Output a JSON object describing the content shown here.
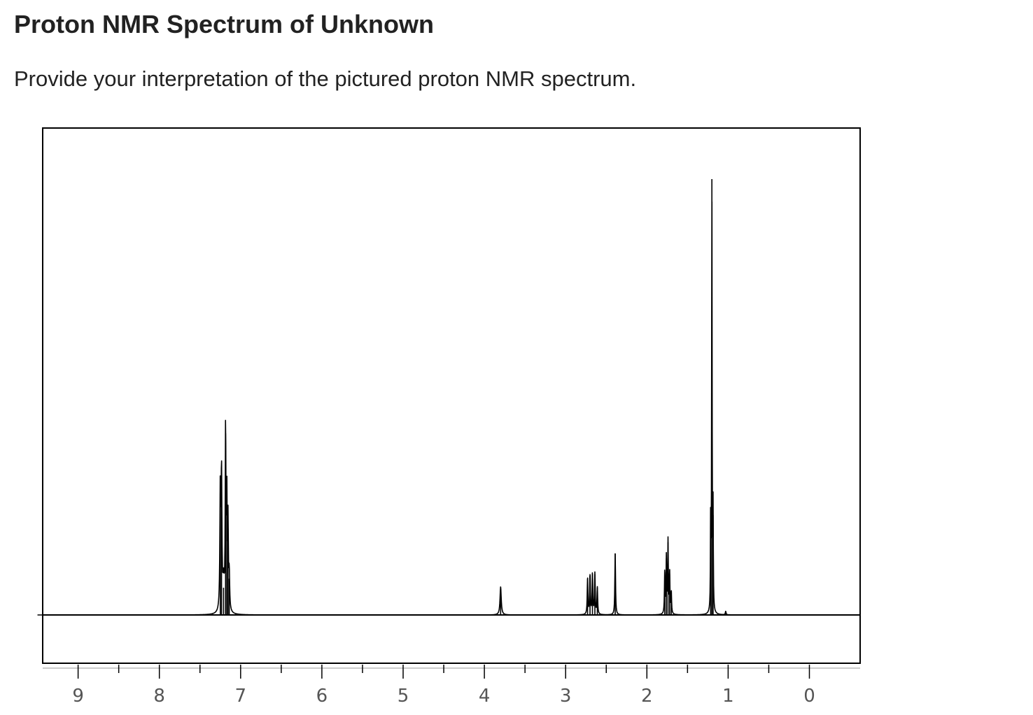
{
  "question": {
    "title": "Proton NMR Spectrum of Unknown",
    "prompt": "Provide your interpretation of the pictured proton NMR spectrum."
  },
  "colors": {
    "text": "#222222",
    "spectrum_line": "#000000",
    "tick_label": "#555555",
    "background": "#ffffff"
  },
  "chart_data": {
    "type": "line",
    "title": "",
    "xlabel": "",
    "ylabel": "",
    "x_unit": "ppm",
    "xlim": [
      9.0,
      0.0
    ],
    "x_reversed": true,
    "ylim": [
      0,
      1
    ],
    "grid": false,
    "legend": "none",
    "tick_labels": [
      "9",
      "8",
      "7",
      "6",
      "5",
      "4",
      "3",
      "2",
      "1",
      "0"
    ],
    "tick_values": [
      9,
      8,
      7,
      6,
      5,
      4,
      3,
      2,
      1,
      0
    ],
    "minor_ticks": [
      8.5,
      7.5,
      6.5,
      5.5,
      4.5,
      3.5,
      2.5,
      1.5,
      0.5
    ],
    "peaks": [
      {
        "ppm": 7.25,
        "height": 0.27,
        "width": 0.012
      },
      {
        "ppm": 7.235,
        "height": 0.3,
        "width": 0.012
      },
      {
        "ppm": 7.21,
        "height": 0.06,
        "width": 0.02
      },
      {
        "ppm": 7.185,
        "height": 0.4,
        "width": 0.01
      },
      {
        "ppm": 7.17,
        "height": 0.25,
        "width": 0.01
      },
      {
        "ppm": 7.155,
        "height": 0.19,
        "width": 0.01
      },
      {
        "ppm": 7.14,
        "height": 0.08,
        "width": 0.012
      },
      {
        "ppm": 3.8,
        "height": 0.062,
        "width": 0.018
      },
      {
        "ppm": 2.73,
        "height": 0.08,
        "width": 0.01
      },
      {
        "ppm": 2.7,
        "height": 0.09,
        "width": 0.01
      },
      {
        "ppm": 2.67,
        "height": 0.09,
        "width": 0.01
      },
      {
        "ppm": 2.64,
        "height": 0.09,
        "width": 0.01
      },
      {
        "ppm": 2.61,
        "height": 0.06,
        "width": 0.01
      },
      {
        "ppm": 2.39,
        "height": 0.135,
        "width": 0.01
      },
      {
        "ppm": 1.78,
        "height": 0.095,
        "width": 0.009
      },
      {
        "ppm": 1.76,
        "height": 0.125,
        "width": 0.009
      },
      {
        "ppm": 1.74,
        "height": 0.16,
        "width": 0.009
      },
      {
        "ppm": 1.72,
        "height": 0.09,
        "width": 0.009
      },
      {
        "ppm": 1.7,
        "height": 0.05,
        "width": 0.009
      },
      {
        "ppm": 1.215,
        "height": 0.22,
        "width": 0.006
      },
      {
        "ppm": 1.2,
        "height": 0.96,
        "width": 0.007
      },
      {
        "ppm": 1.185,
        "height": 0.22,
        "width": 0.006
      },
      {
        "ppm": 1.03,
        "height": 0.008,
        "width": 0.01
      }
    ]
  }
}
